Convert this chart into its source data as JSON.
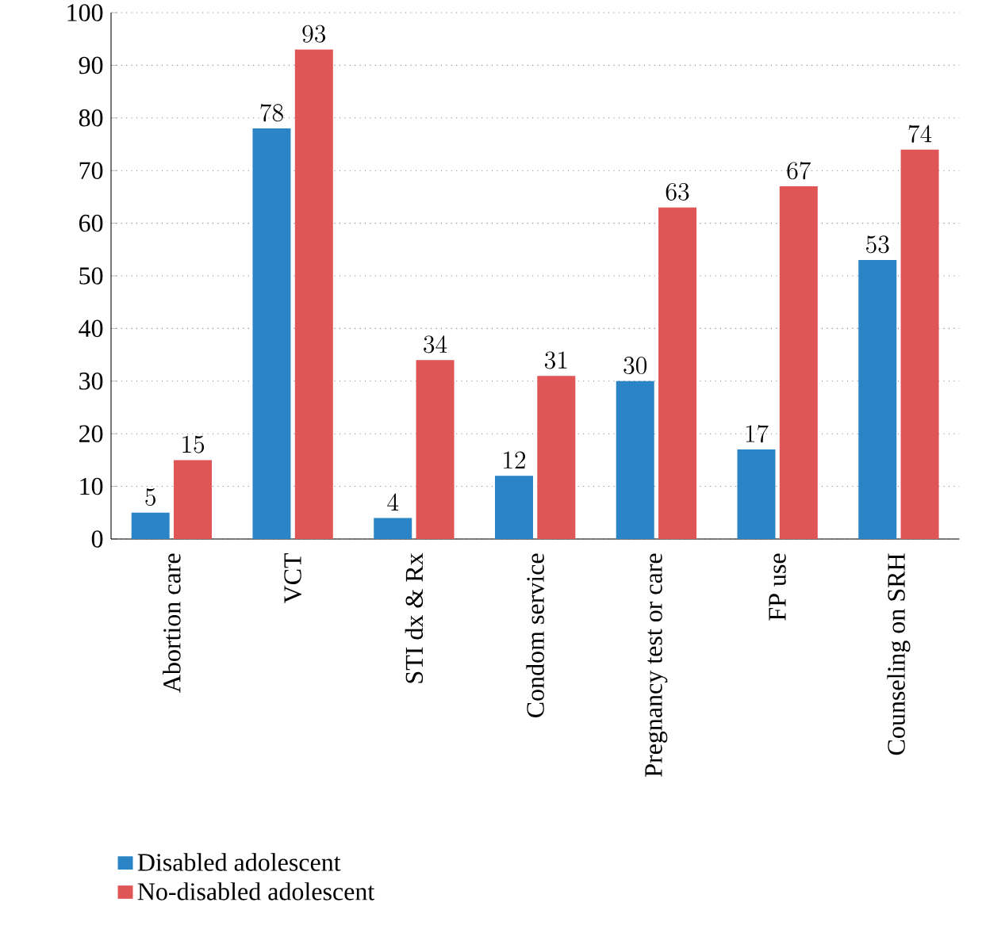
{
  "chart_data": {
    "type": "bar",
    "categories": [
      "Abortion care",
      "VCT",
      "STI dx & Rx",
      "Condom service",
      "Pregnancy test or care",
      "FP use",
      "Counseling on SRH"
    ],
    "series": [
      {
        "name": "Disabled adolescent",
        "color": "#2b84c6",
        "values": [
          5,
          78,
          4,
          12,
          30,
          17,
          53
        ]
      },
      {
        "name": "No-disabled adolescent",
        "color": "#e05555",
        "values": [
          15,
          93,
          34,
          31,
          63,
          67,
          74
        ]
      }
    ],
    "ylim": [
      0,
      100
    ],
    "yticks": [
      0,
      10,
      20,
      30,
      40,
      50,
      60,
      70,
      80,
      90,
      100
    ],
    "grid": "y",
    "legend": "bottom left",
    "data_labels": true
  }
}
